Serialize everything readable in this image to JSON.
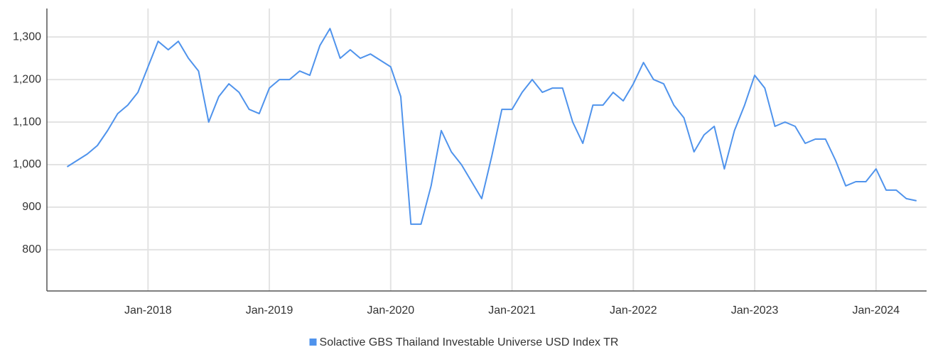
{
  "chart_data": {
    "type": "line",
    "x": [
      "2017-05",
      "2017-06",
      "2017-07",
      "2017-08",
      "2017-09",
      "2017-10",
      "2017-11",
      "2017-12",
      "2018-01",
      "2018-02",
      "2018-03",
      "2018-04",
      "2018-05",
      "2018-06",
      "2018-07",
      "2018-08",
      "2018-09",
      "2018-10",
      "2018-11",
      "2018-12",
      "2019-01",
      "2019-02",
      "2019-03",
      "2019-04",
      "2019-05",
      "2019-06",
      "2019-07",
      "2019-08",
      "2019-09",
      "2019-10",
      "2019-11",
      "2019-12",
      "2020-01",
      "2020-02",
      "2020-03",
      "2020-04",
      "2020-05",
      "2020-06",
      "2020-07",
      "2020-08",
      "2020-09",
      "2020-10",
      "2020-11",
      "2020-12",
      "2021-01",
      "2021-02",
      "2021-03",
      "2021-04",
      "2021-05",
      "2021-06",
      "2021-07",
      "2021-08",
      "2021-09",
      "2021-10",
      "2021-11",
      "2021-12",
      "2022-01",
      "2022-02",
      "2022-03",
      "2022-04",
      "2022-05",
      "2022-06",
      "2022-07",
      "2022-08",
      "2022-09",
      "2022-10",
      "2022-11",
      "2022-12",
      "2023-01",
      "2023-02",
      "2023-03",
      "2023-04",
      "2023-05",
      "2023-06",
      "2023-07",
      "2023-08",
      "2023-09",
      "2023-10",
      "2023-11",
      "2023-12",
      "2024-01",
      "2024-02",
      "2024-03",
      "2024-04",
      "2024-05"
    ],
    "series": [
      {
        "name": "Solactive GBS Thailand Investable Universe USD Index TR",
        "color": "#4f93ec",
        "values": [
          995,
          1010,
          1025,
          1045,
          1080,
          1120,
          1140,
          1170,
          1230,
          1290,
          1270,
          1290,
          1250,
          1220,
          1100,
          1160,
          1190,
          1170,
          1130,
          1120,
          1180,
          1200,
          1200,
          1220,
          1210,
          1280,
          1320,
          1250,
          1270,
          1250,
          1260,
          1245,
          1230,
          1160,
          860,
          860,
          950,
          1080,
          1030,
          1000,
          960,
          920,
          1020,
          1130,
          1130,
          1170,
          1200,
          1170,
          1180,
          1180,
          1100,
          1050,
          1140,
          1140,
          1170,
          1150,
          1190,
          1240,
          1200,
          1190,
          1140,
          1110,
          1030,
          1070,
          1090,
          990,
          1080,
          1140,
          1210,
          1180,
          1090,
          1100,
          1090,
          1050,
          1060,
          1060,
          1010,
          950,
          960,
          960,
          990,
          940,
          940,
          920,
          915
        ]
      }
    ],
    "xlim": [
      "2017-03",
      "2024-06"
    ],
    "xticks": [
      {
        "value": "2018-01",
        "label": "Jan-2018"
      },
      {
        "value": "2019-01",
        "label": "Jan-2019"
      },
      {
        "value": "2020-01",
        "label": "Jan-2020"
      },
      {
        "value": "2021-01",
        "label": "Jan-2021"
      },
      {
        "value": "2022-01",
        "label": "Jan-2022"
      },
      {
        "value": "2023-01",
        "label": "Jan-2023"
      },
      {
        "value": "2024-01",
        "label": "Jan-2024"
      }
    ],
    "ylim": [
      703,
      1367
    ],
    "yticks": [
      800,
      900,
      {
        "value": 1000,
        "label": "1,000"
      },
      {
        "value": 1100,
        "label": "1,100"
      },
      {
        "value": 1200,
        "label": "1,200"
      },
      {
        "value": 1300,
        "label": "1,300"
      }
    ],
    "grid": true,
    "legend": "bottom"
  }
}
